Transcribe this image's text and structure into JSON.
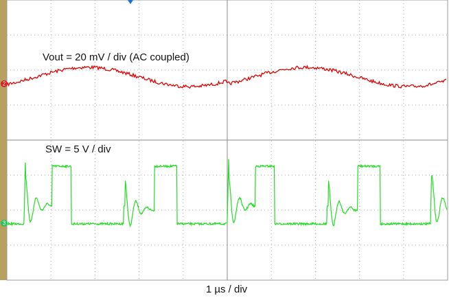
{
  "vout_label": "Vout = 20 mV / div (AC coupled)",
  "sw_label": "SW = 5 V / div",
  "time_label": "1 µs / div",
  "channel_2": "2",
  "channel_3": "3"
}
